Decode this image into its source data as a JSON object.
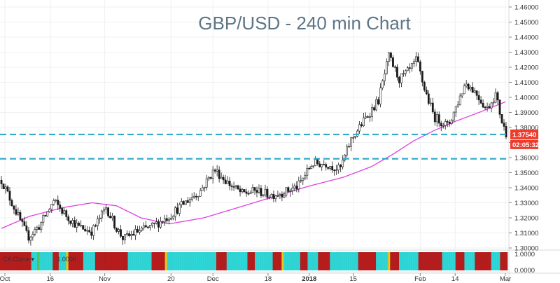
{
  "chart_data": {
    "type": "candlestick",
    "title": "GBP/USD - 240 min Chart",
    "ylim": [
      1.3,
      1.46
    ],
    "y_ticks": [
      "1.46000",
      "1.45000",
      "1.44000",
      "1.43000",
      "1.42000",
      "1.41000",
      "1.40000",
      "1.39000",
      "1.38000",
      "1.37000",
      "1.36000",
      "1.35000",
      "1.34000",
      "1.33000",
      "1.32000",
      "1.31000",
      "1.30000"
    ],
    "x_ticks": [
      {
        "label": "Oct",
        "bold": false
      },
      {
        "label": "16",
        "bold": false
      },
      {
        "label": "Nov",
        "bold": false
      },
      {
        "label": "20",
        "bold": false
      },
      {
        "label": "Dec",
        "bold": false
      },
      {
        "label": "18",
        "bold": false
      },
      {
        "label": "2018",
        "bold": true
      },
      {
        "label": "15",
        "bold": false
      },
      {
        "label": "Feb",
        "bold": false
      },
      {
        "label": "14",
        "bold": false
      },
      {
        "label": "Mar",
        "bold": false
      }
    ],
    "x_tick_index": [
      5,
      70,
      148,
      243,
      303,
      382,
      441,
      504,
      600,
      650,
      722
    ],
    "price_path": [
      [
        0,
        1.345
      ],
      [
        20,
        1.325
      ],
      [
        38,
        1.307
      ],
      [
        55,
        1.315
      ],
      [
        75,
        1.331
      ],
      [
        92,
        1.322
      ],
      [
        110,
        1.314
      ],
      [
        130,
        1.311
      ],
      [
        150,
        1.327
      ],
      [
        165,
        1.313
      ],
      [
        175,
        1.306
      ],
      [
        195,
        1.311
      ],
      [
        215,
        1.314
      ],
      [
        240,
        1.321
      ],
      [
        265,
        1.331
      ],
      [
        285,
        1.338
      ],
      [
        305,
        1.352
      ],
      [
        325,
        1.343
      ],
      [
        345,
        1.336
      ],
      [
        365,
        1.338
      ],
      [
        385,
        1.335
      ],
      [
        405,
        1.337
      ],
      [
        425,
        1.341
      ],
      [
        445,
        1.356
      ],
      [
        465,
        1.356
      ],
      [
        485,
        1.352
      ],
      [
        500,
        1.371
      ],
      [
        520,
        1.385
      ],
      [
        540,
        1.398
      ],
      [
        555,
        1.427
      ],
      [
        570,
        1.412
      ],
      [
        585,
        1.418
      ],
      [
        595,
        1.425
      ],
      [
        605,
        1.407
      ],
      [
        620,
        1.387
      ],
      [
        640,
        1.381
      ],
      [
        655,
        1.398
      ],
      [
        665,
        1.41
      ],
      [
        680,
        1.403
      ],
      [
        695,
        1.392
      ],
      [
        708,
        1.402
      ],
      [
        718,
        1.382
      ],
      [
        724,
        1.375
      ]
    ],
    "moving_average": {
      "color": "#e040e0",
      "points": [
        [
          0,
          1.313
        ],
        [
          40,
          1.321
        ],
        [
          90,
          1.327
        ],
        [
          130,
          1.33
        ],
        [
          165,
          1.328
        ],
        [
          200,
          1.32
        ],
        [
          240,
          1.316
        ],
        [
          290,
          1.32
        ],
        [
          340,
          1.327
        ],
        [
          390,
          1.334
        ],
        [
          440,
          1.341
        ],
        [
          490,
          1.347
        ],
        [
          530,
          1.354
        ],
        [
          560,
          1.362
        ],
        [
          590,
          1.371
        ],
        [
          620,
          1.378
        ],
        [
          650,
          1.384
        ],
        [
          690,
          1.391
        ],
        [
          722,
          1.397
        ]
      ]
    },
    "horizontal_lines": [
      {
        "value": 1.3754,
        "color": "#26a8c8",
        "style": "dashed"
      },
      {
        "value": 1.3592,
        "color": "#26a8c8",
        "style": "dashed"
      }
    ],
    "price_tag": {
      "value": 1.3754,
      "label": "1.37540",
      "color": "#ef3b2c"
    },
    "countdown_tag": {
      "label": "02:05:32",
      "color": "#ef3b2c"
    },
    "up_color": "#1a1a1a",
    "down_color": "#1a1a1a"
  },
  "indicator": {
    "label": "CK Clone ▾               1.0000",
    "axis_labels": [
      "1.0000",
      "0.0000"
    ],
    "colors": {
      "red": "#b81d1d",
      "cyan": "#2fd8d8",
      "yellow": "#e8c81a",
      "green": "#57c257"
    },
    "segments": [
      [
        "red",
        42
      ],
      [
        "cyan",
        8
      ],
      [
        "green",
        3
      ],
      [
        "cyan",
        18
      ],
      [
        "red",
        8
      ],
      [
        "cyan",
        10
      ],
      [
        "yellow",
        3
      ],
      [
        "red",
        20
      ],
      [
        "cyan",
        16
      ],
      [
        "red",
        44
      ],
      [
        "cyan",
        32
      ],
      [
        "red",
        18
      ],
      [
        "yellow",
        3
      ],
      [
        "cyan",
        66
      ],
      [
        "red",
        14
      ],
      [
        "cyan",
        28
      ],
      [
        "red",
        10
      ],
      [
        "cyan",
        24
      ],
      [
        "red",
        12
      ],
      [
        "yellow",
        3
      ],
      [
        "cyan",
        22
      ],
      [
        "red",
        10
      ],
      [
        "cyan",
        14
      ],
      [
        "red",
        16
      ],
      [
        "cyan",
        38
      ],
      [
        "red",
        24
      ],
      [
        "cyan",
        16
      ],
      [
        "yellow",
        3
      ],
      [
        "red",
        12
      ],
      [
        "cyan",
        26
      ],
      [
        "red",
        32
      ],
      [
        "cyan",
        18
      ],
      [
        "red",
        12
      ],
      [
        "cyan",
        14
      ],
      [
        "red",
        22
      ],
      [
        "cyan",
        12
      ],
      [
        "red",
        10
      ]
    ]
  }
}
